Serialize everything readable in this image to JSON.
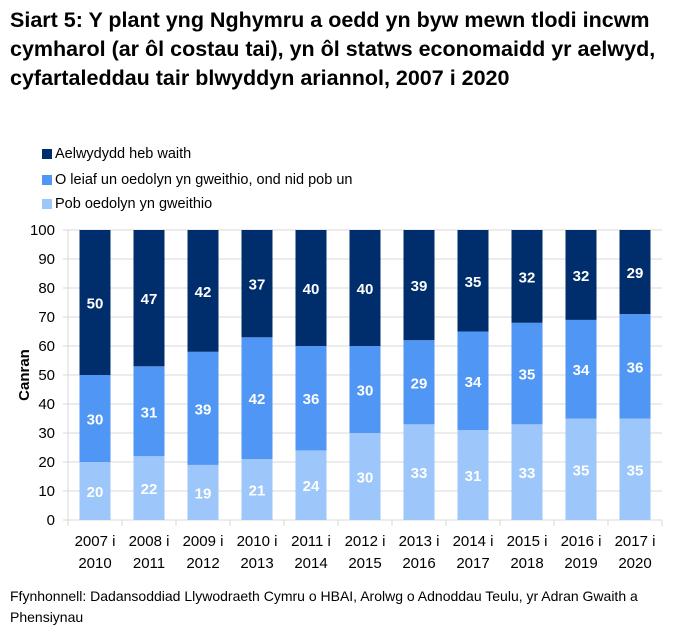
{
  "chart_data": {
    "type": "bar",
    "stacked": true,
    "title": "Siart 5: Y plant yng Nghymru a oedd yn byw mewn tlodi incwm cymharol (ar ôl costau tai), yn ôl statws economaidd yr aelwyd, cyfartaleddau tair blwyddyn ariannol, 2007 i 2020",
    "ylabel": "Canran",
    "xlabel": "",
    "ylim": [
      0,
      100
    ],
    "yticks": [
      0,
      10,
      20,
      30,
      40,
      50,
      60,
      70,
      80,
      90,
      100
    ],
    "grid": true,
    "legend": "top-left",
    "categories": [
      [
        "2007 i",
        "2010"
      ],
      [
        "2008 i",
        "2011"
      ],
      [
        "2009 i",
        "2012"
      ],
      [
        "2010 i",
        "2013"
      ],
      [
        "2011 i",
        "2014"
      ],
      [
        "2012 i",
        "2015"
      ],
      [
        "2013 i",
        "2016"
      ],
      [
        "2014 i",
        "2017"
      ],
      [
        "2015 i",
        "2018"
      ],
      [
        "2016 i",
        "2019"
      ],
      [
        "2017 i",
        "2020"
      ]
    ],
    "series": [
      {
        "name": "Pob oedolyn yn gweithio",
        "color": "#9DC6FA",
        "values": [
          20,
          22,
          19,
          21,
          24,
          30,
          33,
          31,
          33,
          35,
          35
        ]
      },
      {
        "name": "O leiaf un oedolyn yn gweithio, ond nid pob un",
        "color": "#4F96F5",
        "values": [
          30,
          31,
          39,
          42,
          36,
          30,
          29,
          34,
          35,
          34,
          36
        ]
      },
      {
        "name": "Aelwydydd heb waith",
        "color": "#002D6B",
        "values": [
          50,
          47,
          42,
          37,
          40,
          40,
          39,
          35,
          32,
          32,
          29
        ]
      }
    ]
  },
  "source": "Ffynhonnell: Dadansoddiad Llywodraeth Cymru o HBAI, Arolwg o Adnoddau Teulu, yr Adran Gwaith a Phensiynau"
}
